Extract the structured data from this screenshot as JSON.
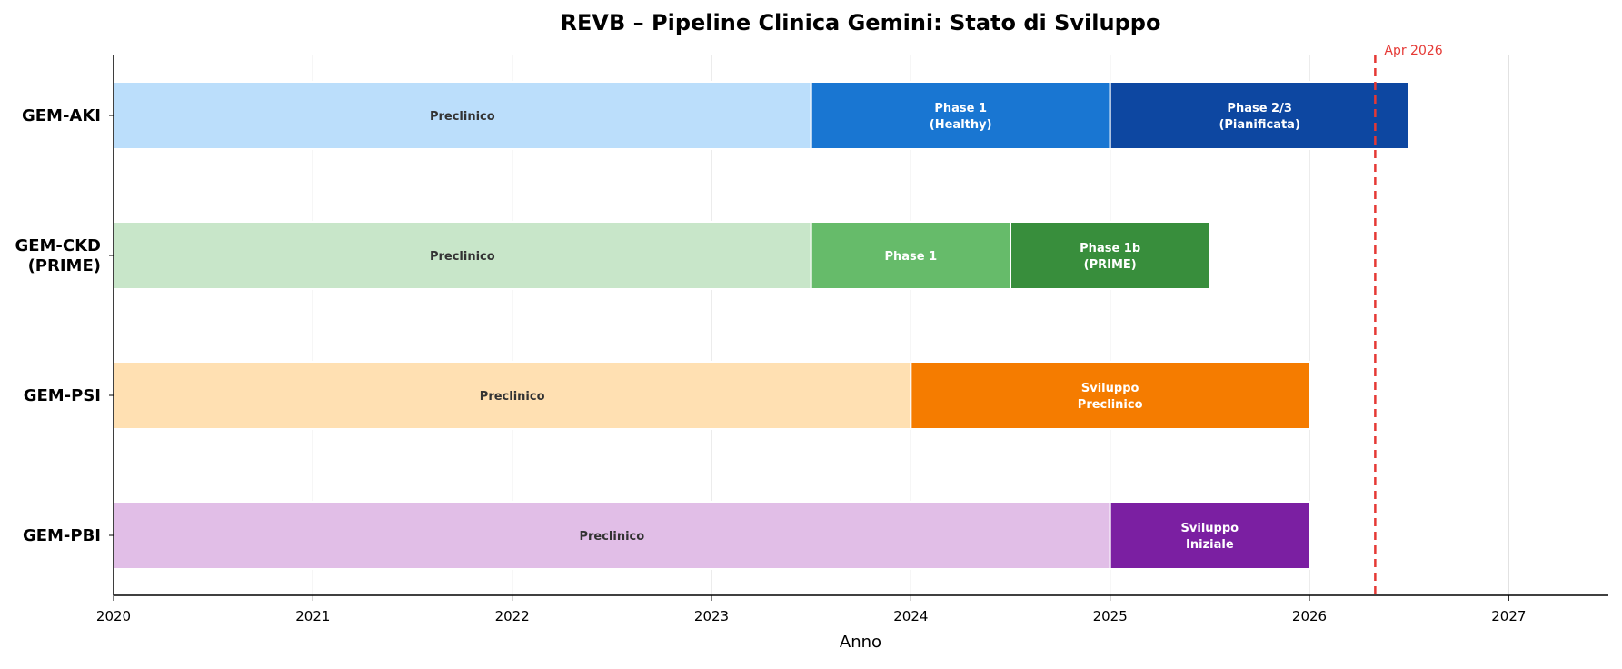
{
  "chart_data": {
    "type": "gantt",
    "title": "REVB – Pipeline Clinica Gemini: Stato di Sviluppo",
    "xlabel": "Anno",
    "xlim": [
      2020,
      2027.5
    ],
    "xticks": [
      "2020",
      "2021",
      "2022",
      "2023",
      "2024",
      "2025",
      "2026",
      "2027"
    ],
    "grid": "vertical",
    "programs": [
      {
        "name_lines": [
          "GEM-AKI"
        ],
        "segments": [
          {
            "label": "Preclinico",
            "start": 2020.0,
            "end": 2023.5,
            "color": "#bbdefb",
            "text_color": "#333333"
          },
          {
            "label": "Phase 1\n(Healthy)",
            "start": 2023.5,
            "end": 2025.0,
            "color": "#1976d2",
            "text_color": "#ffffff"
          },
          {
            "label": "Phase 2/3\n(Pianificata)",
            "start": 2025.0,
            "end": 2026.5,
            "color": "#0d47a1",
            "text_color": "#ffffff"
          }
        ]
      },
      {
        "name_lines": [
          "GEM-CKD",
          "(PRIME)"
        ],
        "segments": [
          {
            "label": "Preclinico",
            "start": 2020.0,
            "end": 2023.5,
            "color": "#c8e6c9",
            "text_color": "#333333"
          },
          {
            "label": "Phase 1",
            "start": 2023.5,
            "end": 2024.5,
            "color": "#66bb6a",
            "text_color": "#ffffff"
          },
          {
            "label": "Phase 1b\n(PRIME)",
            "start": 2024.5,
            "end": 2025.5,
            "color": "#388e3c",
            "text_color": "#ffffff"
          }
        ]
      },
      {
        "name_lines": [
          "GEM-PSI"
        ],
        "segments": [
          {
            "label": "Preclinico",
            "start": 2020.0,
            "end": 2024.0,
            "color": "#ffe0b2",
            "text_color": "#333333"
          },
          {
            "label": "Sviluppo\nPreclinico",
            "start": 2024.0,
            "end": 2026.0,
            "color": "#f57c00",
            "text_color": "#ffffff"
          }
        ]
      },
      {
        "name_lines": [
          "GEM-PBI"
        ],
        "segments": [
          {
            "label": "Preclinico",
            "start": 2020.0,
            "end": 2025.0,
            "color": "#e1bee7",
            "text_color": "#333333"
          },
          {
            "label": "Sviluppo\nIniziale",
            "start": 2025.0,
            "end": 2026.0,
            "color": "#7b1fa2",
            "text_color": "#ffffff"
          }
        ]
      }
    ],
    "today_marker": {
      "label": "Apr 2026",
      "value": 2026.33,
      "color": "#e53935"
    }
  }
}
